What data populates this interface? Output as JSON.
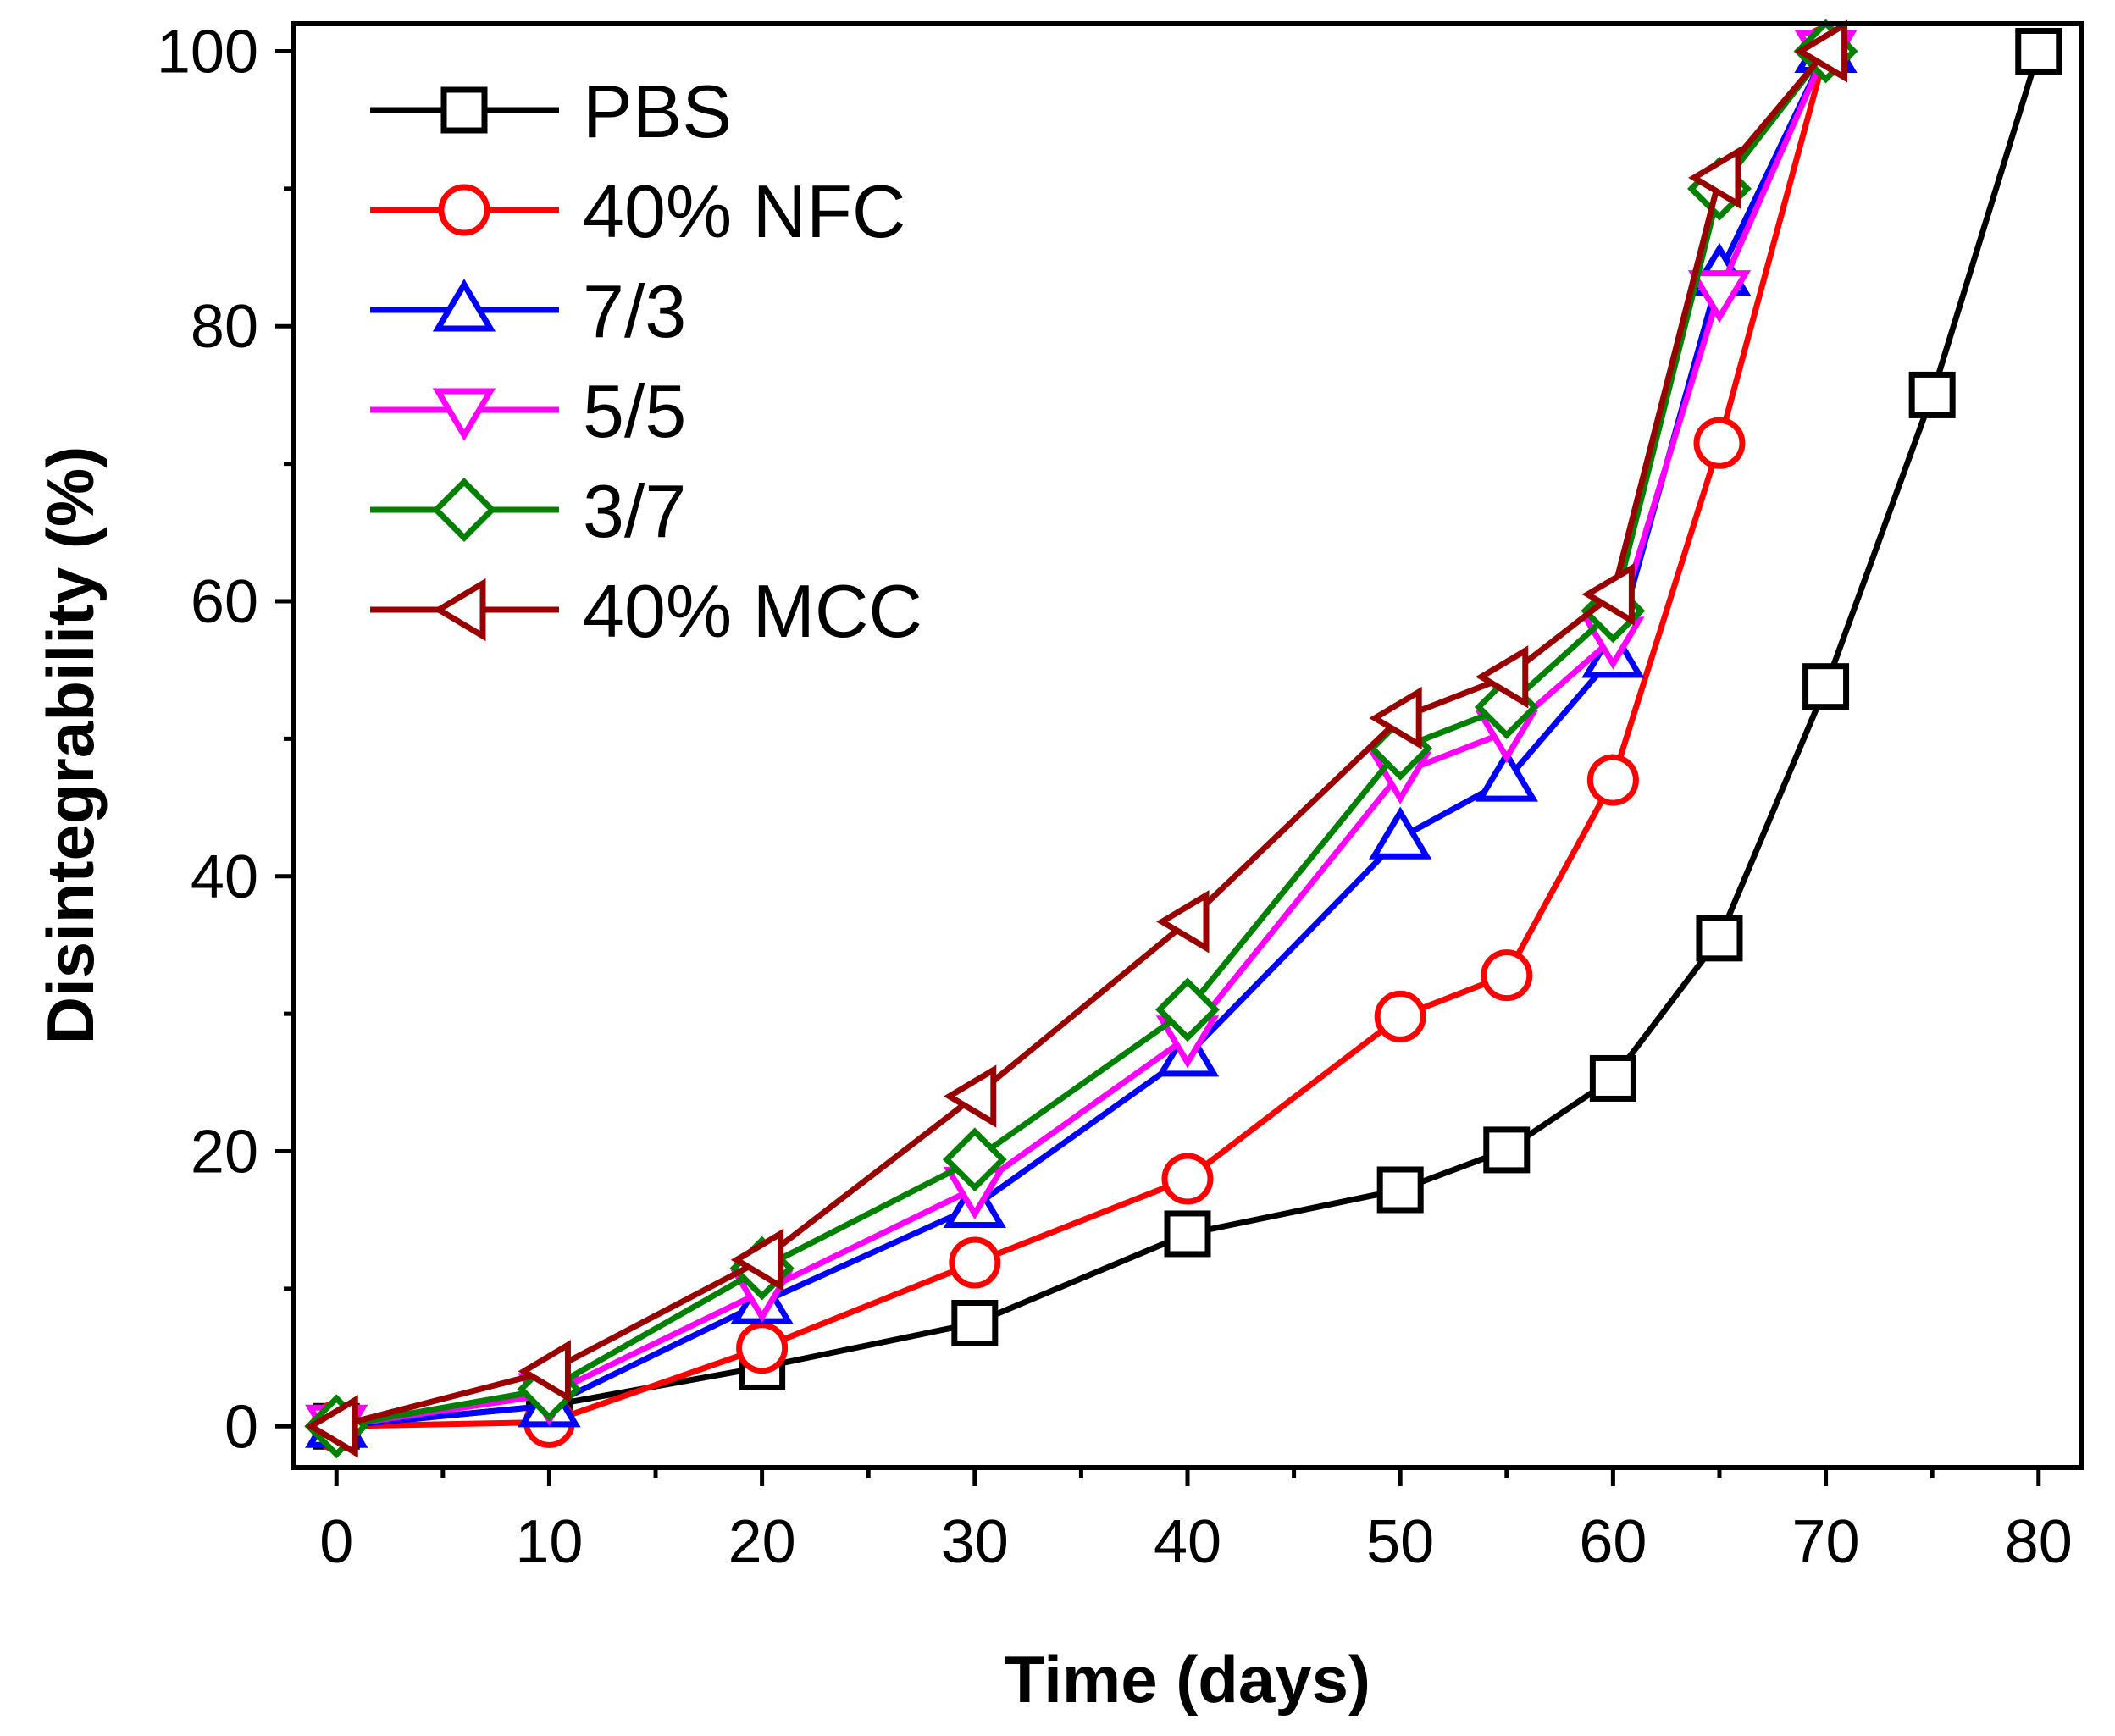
{
  "chart_data": {
    "type": "line",
    "title": "",
    "xlabel": "Time (days)",
    "ylabel": "Disintegrability (%)",
    "xlim": [
      -2,
      82
    ],
    "ylim": [
      -3,
      102
    ],
    "xticks": [
      0,
      10,
      20,
      30,
      40,
      50,
      60,
      70,
      80
    ],
    "xtick_labels": [
      "0",
      "10",
      "20",
      "30",
      "40",
      "50",
      "60",
      "70",
      "80"
    ],
    "yticks": [
      0,
      20,
      40,
      60,
      80,
      100
    ],
    "ytick_labels": [
      "0",
      "20",
      "40",
      "60",
      "80",
      "100"
    ],
    "grid": false,
    "legend_position": "top-left",
    "series": [
      {
        "name": "PBS",
        "color": "#000000",
        "marker": "square",
        "x": [
          0,
          10,
          20,
          30,
          40,
          50,
          55,
          60,
          65,
          70,
          75,
          80
        ],
        "y": [
          0,
          1.5,
          4.3,
          7.5,
          14,
          17.2,
          20.1,
          25.3,
          35.5,
          53.8,
          75,
          100
        ]
      },
      {
        "name": "40% NFC",
        "color": "#ff0000",
        "marker": "circle",
        "x": [
          0,
          10,
          20,
          30,
          40,
          50,
          55,
          60,
          65,
          70
        ],
        "y": [
          0,
          0.3,
          5.7,
          11.9,
          18,
          29.8,
          32.8,
          47,
          71.5,
          100
        ]
      },
      {
        "name": "7/3",
        "color": "#0000ff",
        "marker": "triangle-up",
        "x": [
          0,
          10,
          20,
          30,
          40,
          50,
          55,
          60,
          65,
          70
        ],
        "y": [
          0,
          1.5,
          9,
          16,
          27,
          42.8,
          47,
          56,
          83.8,
          100
        ]
      },
      {
        "name": "5/5",
        "color": "#ff00ff",
        "marker": "triangle-down",
        "x": [
          0,
          10,
          20,
          30,
          40,
          50,
          55,
          60,
          65,
          70
        ],
        "y": [
          0,
          2.3,
          9.8,
          17.3,
          28.3,
          47.5,
          50.5,
          57.3,
          82.5,
          100
        ]
      },
      {
        "name": "3/7",
        "color": "#008000",
        "marker": "diamond",
        "x": [
          0,
          10,
          20,
          30,
          40,
          50,
          55,
          60,
          65,
          70
        ],
        "y": [
          0,
          2.7,
          11.5,
          19.4,
          30.3,
          49.3,
          52.3,
          59.3,
          90,
          100
        ]
      },
      {
        "name": "40% MCC",
        "color": "#990000",
        "marker": "triangle-left",
        "x": [
          0,
          10,
          20,
          30,
          40,
          50,
          55,
          60,
          65,
          70
        ],
        "y": [
          0,
          4,
          12.1,
          24,
          36.7,
          51.5,
          54.5,
          60.5,
          90.8,
          100
        ]
      }
    ]
  }
}
